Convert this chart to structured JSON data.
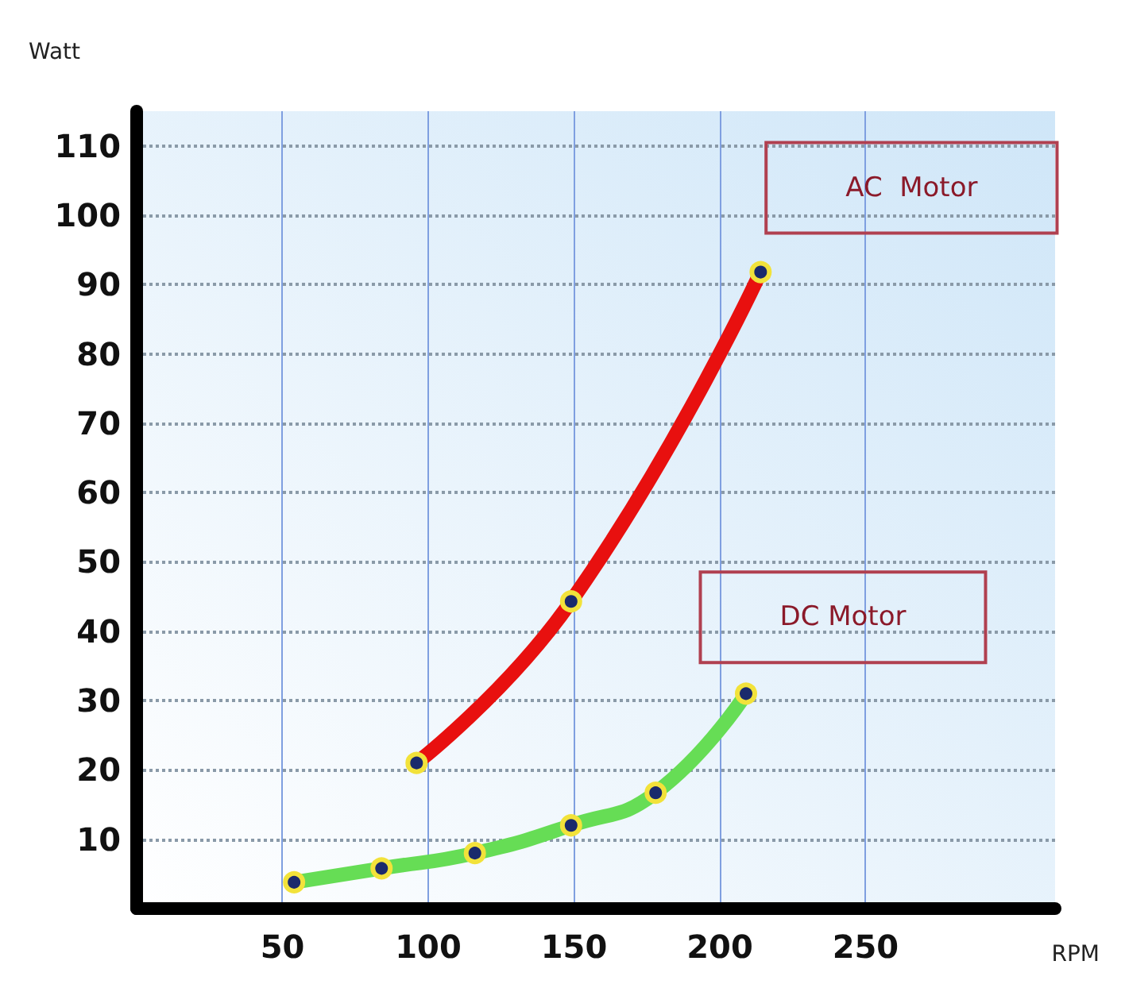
{
  "chart_data": {
    "type": "line",
    "xlabel": "RPM",
    "ylabel": "Watt",
    "xlim": [
      0,
      315
    ],
    "ylim": [
      0,
      115
    ],
    "xticks": [
      50,
      100,
      150,
      200,
      250
    ],
    "yticks": [
      10,
      20,
      30,
      40,
      50,
      60,
      70,
      80,
      90,
      100,
      110
    ],
    "grid": true,
    "legend": false,
    "marker": "circle",
    "line_style": "solid",
    "series": [
      {
        "name": "AC  Motor",
        "color": "#e8100f",
        "x": [
          96,
          149,
          214
        ],
        "values": [
          21,
          44.3,
          91.8
        ]
      },
      {
        "name": "DC Motor",
        "color": "#66dd55",
        "x": [
          54,
          84,
          116,
          149,
          178,
          209
        ],
        "values": [
          3.8,
          5.8,
          8,
          12,
          16.7,
          31
        ]
      }
    ]
  }
}
